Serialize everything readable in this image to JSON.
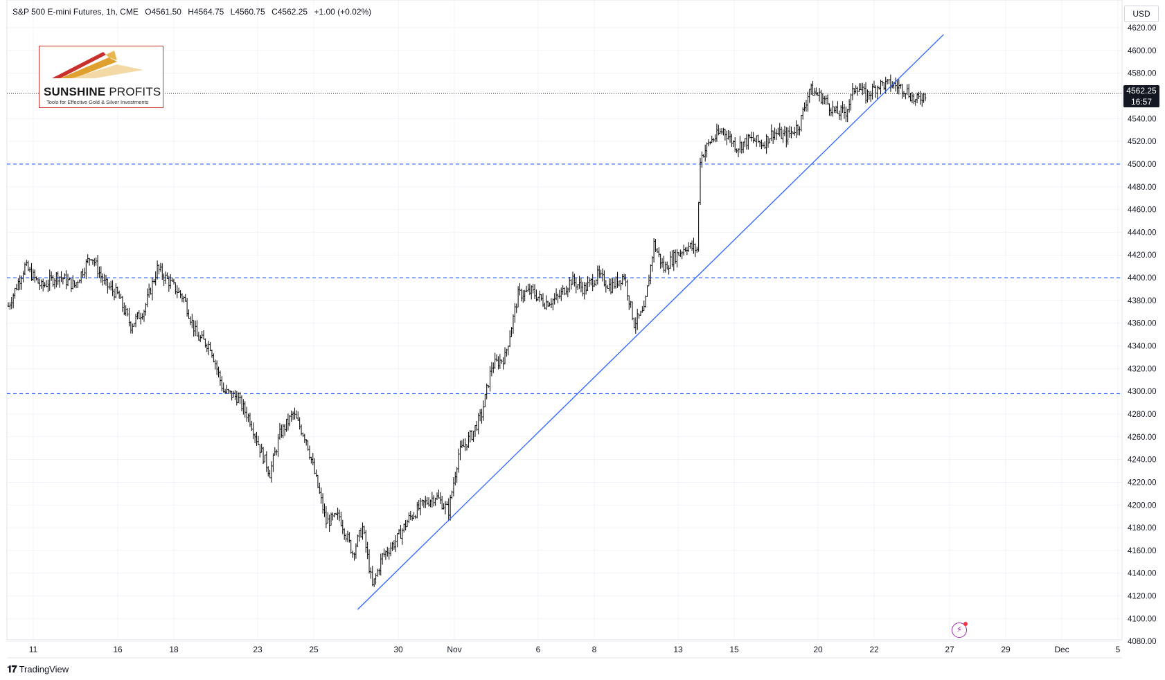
{
  "header": {
    "symbol": "S&P 500 E-mini Futures, 1h, CME",
    "open": "O4561.50",
    "high": "H4564.75",
    "low": "L4560.75",
    "close": "C4562.25",
    "change": "+1.00 (+0.02%)"
  },
  "currency_label": "USD",
  "last_price": {
    "value": "4562.25",
    "countdown": "16:57"
  },
  "logo": {
    "title_bold": "SUNSHINE",
    "title_rest": "PROFITS",
    "subtitle": "Tools for Effective Gold & Silver Investments"
  },
  "branding": "TradingView",
  "colors": {
    "background": "#ffffff",
    "bars": "#000000",
    "trendline": "#2962ff",
    "levels": "#2962ff",
    "grid": "#f0f3fa",
    "price_tag_bg": "#131722",
    "logo_border": "#c9302c"
  },
  "chart_data": {
    "type": "ohlc",
    "title": "S&P 500 E-mini Futures, 1h, CME",
    "xlabel": "",
    "ylabel": "",
    "ylim": [
      4066,
      4626
    ],
    "y_ticks": [
      4080,
      4100,
      4120,
      4140,
      4160,
      4180,
      4200,
      4220,
      4240,
      4260,
      4280,
      4300,
      4320,
      4340,
      4360,
      4380,
      4400,
      4420,
      4440,
      4460,
      4480,
      4500,
      4520,
      4540,
      4560,
      4580,
      4600,
      4620
    ],
    "y_tick_labels": [
      "4080.00",
      "4100.00",
      "4120.00",
      "4140.00",
      "4160.00",
      "4180.00",
      "4200.00",
      "4220.00",
      "4240.00",
      "4260.00",
      "4280.00",
      "4300.00",
      "4320.00",
      "4340.00",
      "4360.00",
      "4380.00",
      "4400.00",
      "4420.00",
      "4440.00",
      "4460.00",
      "4480.00",
      "4500.00",
      "4520.00",
      "4540.00",
      "4560.00",
      "4580.00",
      "4600.00",
      "4620.00"
    ],
    "x_tick_labels": [
      "11",
      "16",
      "18",
      "23",
      "25",
      "30",
      "Nov",
      "6",
      "8",
      "13",
      "15",
      "20",
      "22",
      "27",
      "29",
      "Dec",
      "5"
    ],
    "price_path": [
      {
        "t": 0,
        "p": 4375
      },
      {
        "t": 10,
        "p": 4410
      },
      {
        "t": 20,
        "p": 4392
      },
      {
        "t": 30,
        "p": 4402
      },
      {
        "t": 40,
        "p": 4393
      },
      {
        "t": 50,
        "p": 4420
      },
      {
        "t": 58,
        "p": 4395
      },
      {
        "t": 66,
        "p": 4385
      },
      {
        "t": 74,
        "p": 4358
      },
      {
        "t": 82,
        "p": 4372
      },
      {
        "t": 90,
        "p": 4408
      },
      {
        "t": 98,
        "p": 4395
      },
      {
        "t": 106,
        "p": 4382
      },
      {
        "t": 114,
        "p": 4348
      },
      {
        "t": 122,
        "p": 4340
      },
      {
        "t": 130,
        "p": 4300
      },
      {
        "t": 138,
        "p": 4295
      },
      {
        "t": 146,
        "p": 4275
      },
      {
        "t": 152,
        "p": 4250
      },
      {
        "t": 158,
        "p": 4228
      },
      {
        "t": 164,
        "p": 4262
      },
      {
        "t": 172,
        "p": 4280
      },
      {
        "t": 180,
        "p": 4258
      },
      {
        "t": 186,
        "p": 4222
      },
      {
        "t": 192,
        "p": 4185
      },
      {
        "t": 200,
        "p": 4190
      },
      {
        "t": 208,
        "p": 4158
      },
      {
        "t": 214,
        "p": 4180
      },
      {
        "t": 220,
        "p": 4128
      },
      {
        "t": 226,
        "p": 4155
      },
      {
        "t": 234,
        "p": 4168
      },
      {
        "t": 242,
        "p": 4188
      },
      {
        "t": 250,
        "p": 4200
      },
      {
        "t": 258,
        "p": 4208
      },
      {
        "t": 266,
        "p": 4195
      },
      {
        "t": 272,
        "p": 4245
      },
      {
        "t": 280,
        "p": 4262
      },
      {
        "t": 286,
        "p": 4280
      },
      {
        "t": 292,
        "p": 4322
      },
      {
        "t": 300,
        "p": 4330
      },
      {
        "t": 308,
        "p": 4385
      },
      {
        "t": 316,
        "p": 4388
      },
      {
        "t": 324,
        "p": 4378
      },
      {
        "t": 332,
        "p": 4382
      },
      {
        "t": 340,
        "p": 4398
      },
      {
        "t": 348,
        "p": 4390
      },
      {
        "t": 356,
        "p": 4402
      },
      {
        "t": 364,
        "p": 4392
      },
      {
        "t": 372,
        "p": 4402
      },
      {
        "t": 378,
        "p": 4360
      },
      {
        "t": 384,
        "p": 4370
      },
      {
        "t": 390,
        "p": 4430
      },
      {
        "t": 396,
        "p": 4408
      },
      {
        "t": 402,
        "p": 4418
      },
      {
        "t": 410,
        "p": 4428
      },
      {
        "t": 416,
        "p": 4425
      },
      {
        "t": 418,
        "p": 4505
      },
      {
        "t": 424,
        "p": 4520
      },
      {
        "t": 432,
        "p": 4530
      },
      {
        "t": 440,
        "p": 4515
      },
      {
        "t": 448,
        "p": 4522
      },
      {
        "t": 456,
        "p": 4518
      },
      {
        "t": 462,
        "p": 4528
      },
      {
        "t": 470,
        "p": 4524
      },
      {
        "t": 478,
        "p": 4535
      },
      {
        "t": 484,
        "p": 4566
      },
      {
        "t": 492,
        "p": 4558
      },
      {
        "t": 500,
        "p": 4545
      },
      {
        "t": 506,
        "p": 4546
      },
      {
        "t": 512,
        "p": 4570
      },
      {
        "t": 518,
        "p": 4560
      },
      {
        "t": 526,
        "p": 4570
      },
      {
        "t": 534,
        "p": 4570
      },
      {
        "t": 542,
        "p": 4566
      },
      {
        "t": 548,
        "p": 4555
      },
      {
        "t": 554,
        "p": 4562
      }
    ],
    "horizontal_levels": [
      4500,
      4400,
      4298
    ],
    "current_price": 4562.25,
    "trendline": {
      "from": {
        "t": 211,
        "p": 4108
      },
      "to": {
        "t": 565,
        "p": 4614
      }
    }
  }
}
